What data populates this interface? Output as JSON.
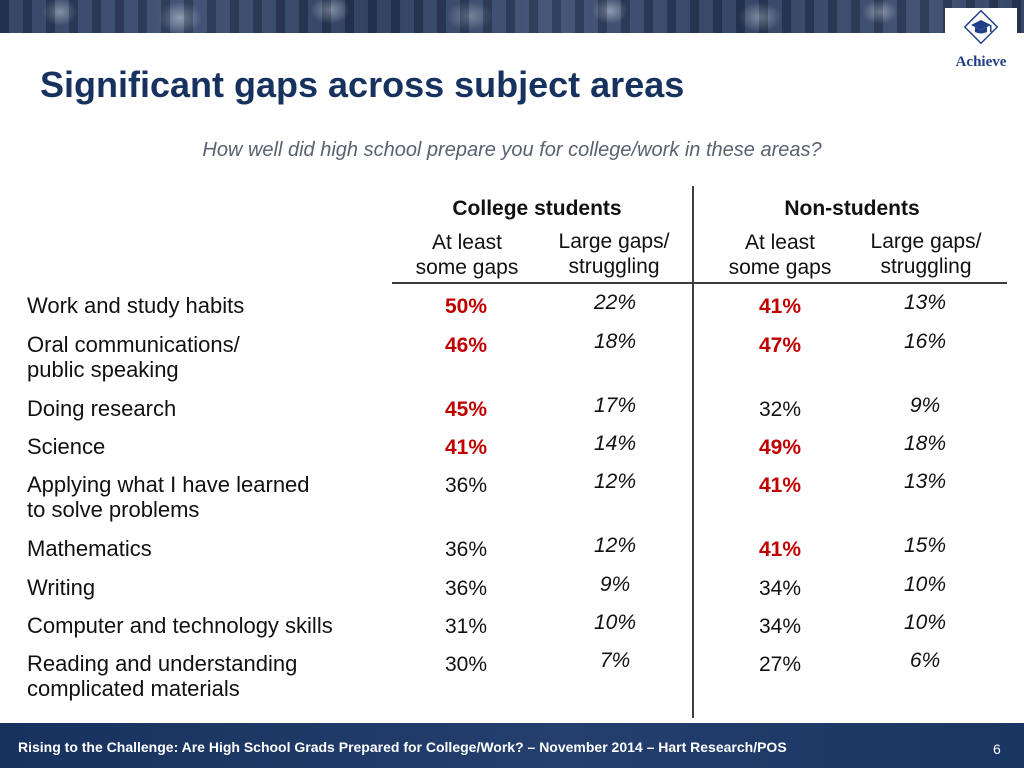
{
  "header": {
    "title": "Significant gaps across subject areas",
    "logo_text": "Achieve"
  },
  "question": "How well did high school prepare you for college/work in these areas?",
  "groups": [
    {
      "label": "College students",
      "columns": [
        "At least\nsome gaps",
        "Large gaps/\nstruggling"
      ]
    },
    {
      "label": "Non-students",
      "columns": [
        "At least\nsome gaps",
        "Large gaps/\nstruggling"
      ]
    }
  ],
  "rows": [
    {
      "label": "Work and study habits",
      "values": [
        {
          "text": "50%",
          "emphasis": true
        },
        {
          "text": "22%",
          "italic": true
        },
        {
          "text": "41%",
          "emphasis": true
        },
        {
          "text": "13%",
          "italic": true
        }
      ]
    },
    {
      "label": "Oral communications/\npublic speaking",
      "values": [
        {
          "text": "46%",
          "emphasis": true
        },
        {
          "text": "18%",
          "italic": true
        },
        {
          "text": "47%",
          "emphasis": true
        },
        {
          "text": "16%",
          "italic": true
        }
      ]
    },
    {
      "label": "Doing research",
      "values": [
        {
          "text": "45%",
          "emphasis": true
        },
        {
          "text": "17%",
          "italic": true
        },
        {
          "text": "32%",
          "emphasis": false
        },
        {
          "text": "9%",
          "italic": true
        }
      ]
    },
    {
      "label": "Science",
      "values": [
        {
          "text": "41%",
          "emphasis": true
        },
        {
          "text": "14%",
          "italic": true
        },
        {
          "text": "49%",
          "emphasis": true
        },
        {
          "text": "18%",
          "italic": true
        }
      ]
    },
    {
      "label": "Applying what I have learned\nto solve problems",
      "values": [
        {
          "text": "36%",
          "emphasis": false
        },
        {
          "text": "12%",
          "italic": true
        },
        {
          "text": "41%",
          "emphasis": true
        },
        {
          "text": "13%",
          "italic": true
        }
      ]
    },
    {
      "label": "Mathematics",
      "values": [
        {
          "text": "36%",
          "emphasis": false
        },
        {
          "text": "12%",
          "italic": true
        },
        {
          "text": "41%",
          "emphasis": true
        },
        {
          "text": "15%",
          "italic": true
        }
      ]
    },
    {
      "label": "Writing",
      "values": [
        {
          "text": "36%",
          "emphasis": false
        },
        {
          "text": "9%",
          "italic": true
        },
        {
          "text": "34%",
          "emphasis": false
        },
        {
          "text": "10%",
          "italic": true
        }
      ]
    },
    {
      "label": "Computer and technology skills",
      "values": [
        {
          "text": "31%",
          "emphasis": false
        },
        {
          "text": "10%",
          "italic": true
        },
        {
          "text": "34%",
          "emphasis": false
        },
        {
          "text": "10%",
          "italic": true
        }
      ]
    },
    {
      "label": "Reading and understanding\ncomplicated materials",
      "values": [
        {
          "text": "30%",
          "emphasis": false
        },
        {
          "text": "7%",
          "italic": true
        },
        {
          "text": "27%",
          "emphasis": false
        },
        {
          "text": "6%",
          "italic": true
        }
      ]
    }
  ],
  "footer": {
    "text": "Rising to the Challenge:  Are High School Grads Prepared for College/Work? – November 2014 – Hart Research/POS",
    "page": "6"
  },
  "colors": {
    "title": "#17325e",
    "emphasis": "#c00000",
    "question": "#596270",
    "footer_bg": "#17325e"
  }
}
